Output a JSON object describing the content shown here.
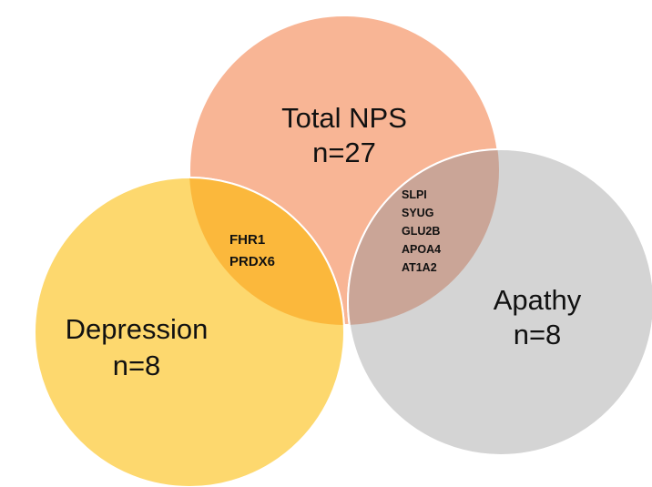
{
  "sets": [
    {
      "label": "Total NPS",
      "count": "n=27"
    },
    {
      "label": "Depression",
      "count": "n=8"
    },
    {
      "label": "Apathy",
      "count": "n=8"
    }
  ],
  "intersections": [
    {
      "genes": [
        "FHR1",
        "PRDX6"
      ]
    },
    {
      "genes": [
        "SLPI",
        "SYUG",
        "GLU2B",
        "APOA4",
        "AT1A2"
      ]
    }
  ]
}
